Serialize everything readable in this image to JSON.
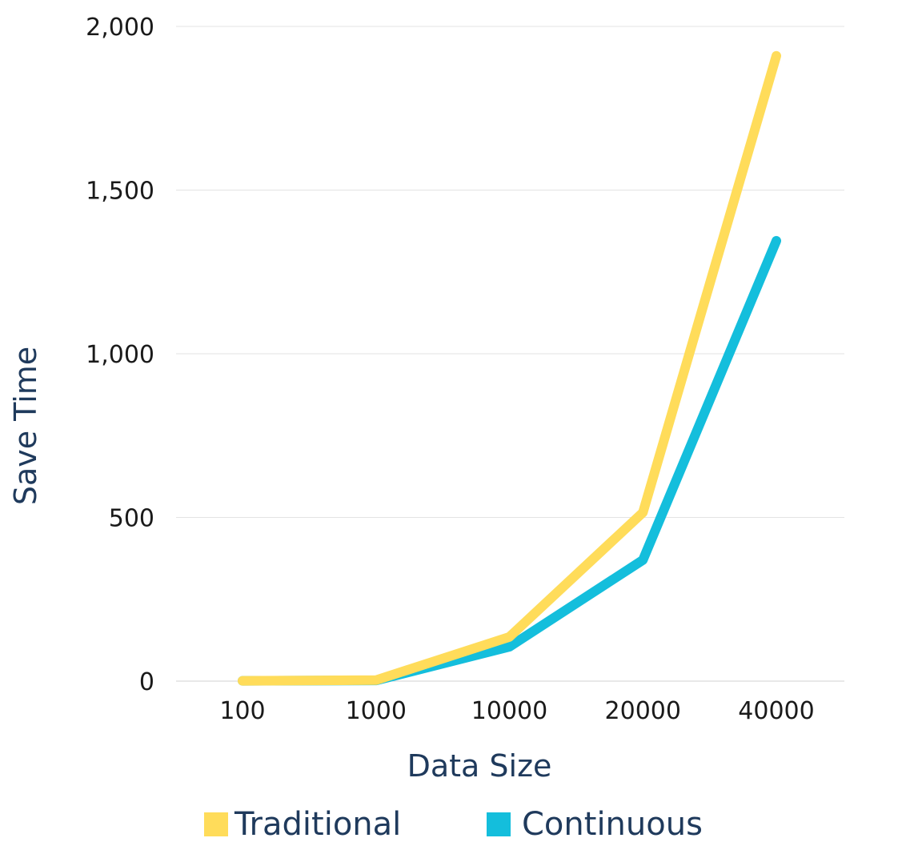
{
  "chart_data": {
    "type": "line",
    "title": "",
    "xlabel": "Data Size",
    "ylabel": "Save Time",
    "categories": [
      "100",
      "1000",
      "10000",
      "20000",
      "40000"
    ],
    "y_ticks": [
      0,
      500,
      1000,
      1500,
      2000
    ],
    "y_tick_labels": [
      "0",
      "500",
      "1,000",
      "1,500",
      "2,000"
    ],
    "ylim": [
      0,
      2000
    ],
    "grid": "horizontal",
    "legend_position": "bottom",
    "series": [
      {
        "name": "Traditional",
        "color": "#FFDC5A",
        "values": [
          1,
          3,
          135,
          515,
          1910
        ]
      },
      {
        "name": "Continuous",
        "color": "#14BEDC",
        "values": [
          1,
          2,
          105,
          370,
          1345
        ]
      }
    ]
  }
}
